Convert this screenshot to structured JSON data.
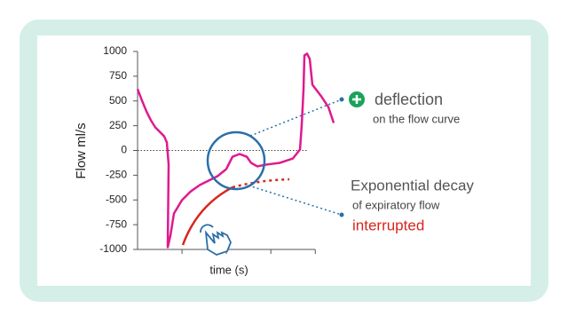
{
  "chart_data": {
    "type": "line",
    "ylabel": "Flow ml/s",
    "xlabel": "time (s)",
    "ylim": [
      -1000,
      1000
    ],
    "yticks": [
      1000,
      750,
      500,
      250,
      0,
      -250,
      -500,
      -750,
      -1000
    ],
    "xlim": [
      0,
      4.5
    ],
    "color": "#e0198f",
    "x": [
      0,
      0.1,
      0.2,
      0.3,
      0.4,
      0.5,
      0.6,
      0.66,
      0.7,
      0.68,
      0.74,
      0.82,
      1.0,
      1.2,
      1.4,
      1.6,
      1.8,
      2.0,
      2.14,
      2.3,
      2.46,
      2.56,
      2.7,
      2.9,
      3.2,
      3.5,
      3.66,
      3.7,
      3.74,
      3.76,
      3.82,
      3.88,
      3.94,
      4.14,
      4.3,
      4.42
    ],
    "values": [
      620,
      504,
      395,
      305,
      233,
      188,
      143,
      81,
      -143,
      -978,
      -861,
      -637,
      -502,
      -413,
      -350,
      -305,
      -260,
      -188,
      -63,
      -36,
      -63,
      -126,
      -161,
      -143,
      -126,
      -81,
      9,
      260,
      619,
      960,
      978,
      924,
      664,
      547,
      439,
      278
    ],
    "annotations": [
      "deflection",
      "on the flow curve",
      "Exponential decay",
      "of expiratory flow",
      "interrupted"
    ]
  }
}
